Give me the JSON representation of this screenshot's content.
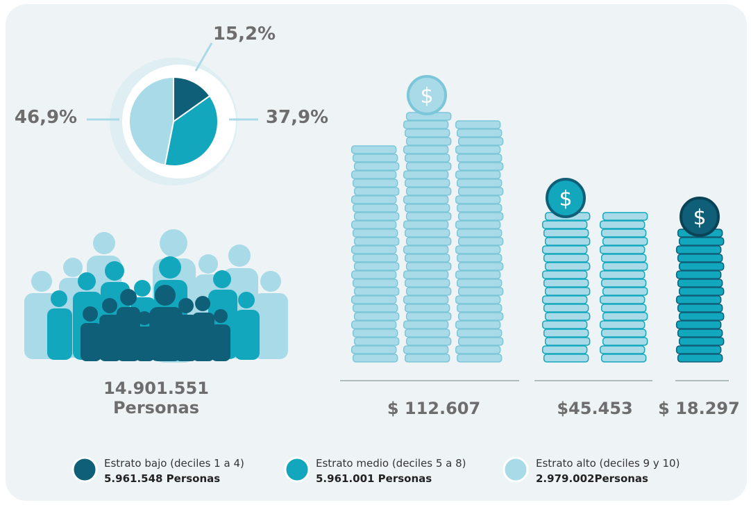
{
  "chart_data": {
    "type": "pie",
    "categories": [
      "Estrato bajo (deciles 1 a 4)",
      "Estrato medio (deciles 5 a 8)",
      "Estrato alto (deciles 9 y 10)"
    ],
    "values": [
      15.2,
      37.9,
      46.9
    ],
    "value_labels": [
      "15,2%",
      "37,9%",
      "46,9%"
    ],
    "colors": [
      "#0f5f78",
      "#12a7bd",
      "#a9dae7"
    ]
  },
  "legend_counts": [
    "5.961.548 Personas",
    "5.961.001 Personas",
    "2.979.002Personas"
  ],
  "population": {
    "total": "14.901.551",
    "label": "Personas"
  },
  "incomes": [
    "$ 112.607",
    "$45.453",
    "$ 18.297"
  ]
}
